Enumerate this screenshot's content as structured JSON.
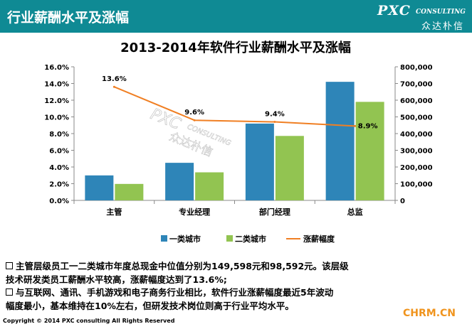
{
  "header": {
    "title": "行业薪酬水平及涨幅"
  },
  "logo": {
    "main": "PXC",
    "sub": "CONSULTING",
    "cn": "众达朴信"
  },
  "watermark": {
    "main": "PXC",
    "sub": "CONSULTING",
    "cn": "众达朴信"
  },
  "chart_data": {
    "type": "bar",
    "title": "2013-2014年软件行业薪酬水平及涨幅",
    "categories": [
      "主管",
      "专业经理",
      "部门经理",
      "总监"
    ],
    "series": [
      {
        "name": "一类城市",
        "kind": "bar",
        "axis": "right",
        "color": "#2e85b8",
        "values": [
          149598,
          225000,
          460000,
          710000
        ]
      },
      {
        "name": "二类城市",
        "kind": "bar",
        "axis": "right",
        "color": "#92c451",
        "values": [
          98592,
          168000,
          386000,
          590000
        ]
      },
      {
        "name": "涨薪幅度",
        "kind": "line",
        "axis": "left",
        "color": "#f07f23",
        "values": [
          13.6,
          9.6,
          9.4,
          8.9
        ],
        "labels": [
          "13.6%",
          "9.6%",
          "9.4%",
          "8.9%"
        ]
      }
    ],
    "left_axis": {
      "ticks": [
        "0.0%",
        "2.0%",
        "4.0%",
        "6.0%",
        "8.0%",
        "10.0%",
        "12.0%",
        "14.0%",
        "16.0%"
      ],
      "range": [
        0,
        16
      ]
    },
    "right_axis": {
      "ticks": [
        "0",
        "100,000",
        "200,000",
        "300,000",
        "400,000",
        "500,000",
        "600,000",
        "700,000",
        "800,000"
      ],
      "range": [
        0,
        800000
      ]
    },
    "legend_position": "bottom",
    "grid": false
  },
  "notes": [
    "主管层级员工一二类城市年度总现金中位值分别为149,598元和98,592元。该层级",
    "技术研发类员工薪酬水平较高，涨薪幅度达到了13.6%;",
    "与互联网、通讯、手机游戏和电子商务行业相比，软件行业涨薪幅度最近5年波动",
    "幅度最小，基本维持在10%左右，但研发技术岗位则高于行业平均水平。"
  ],
  "footer": "Copyright © 2014  PXC consulting All Rights Reserved",
  "site_mark": "CHRM.CN"
}
